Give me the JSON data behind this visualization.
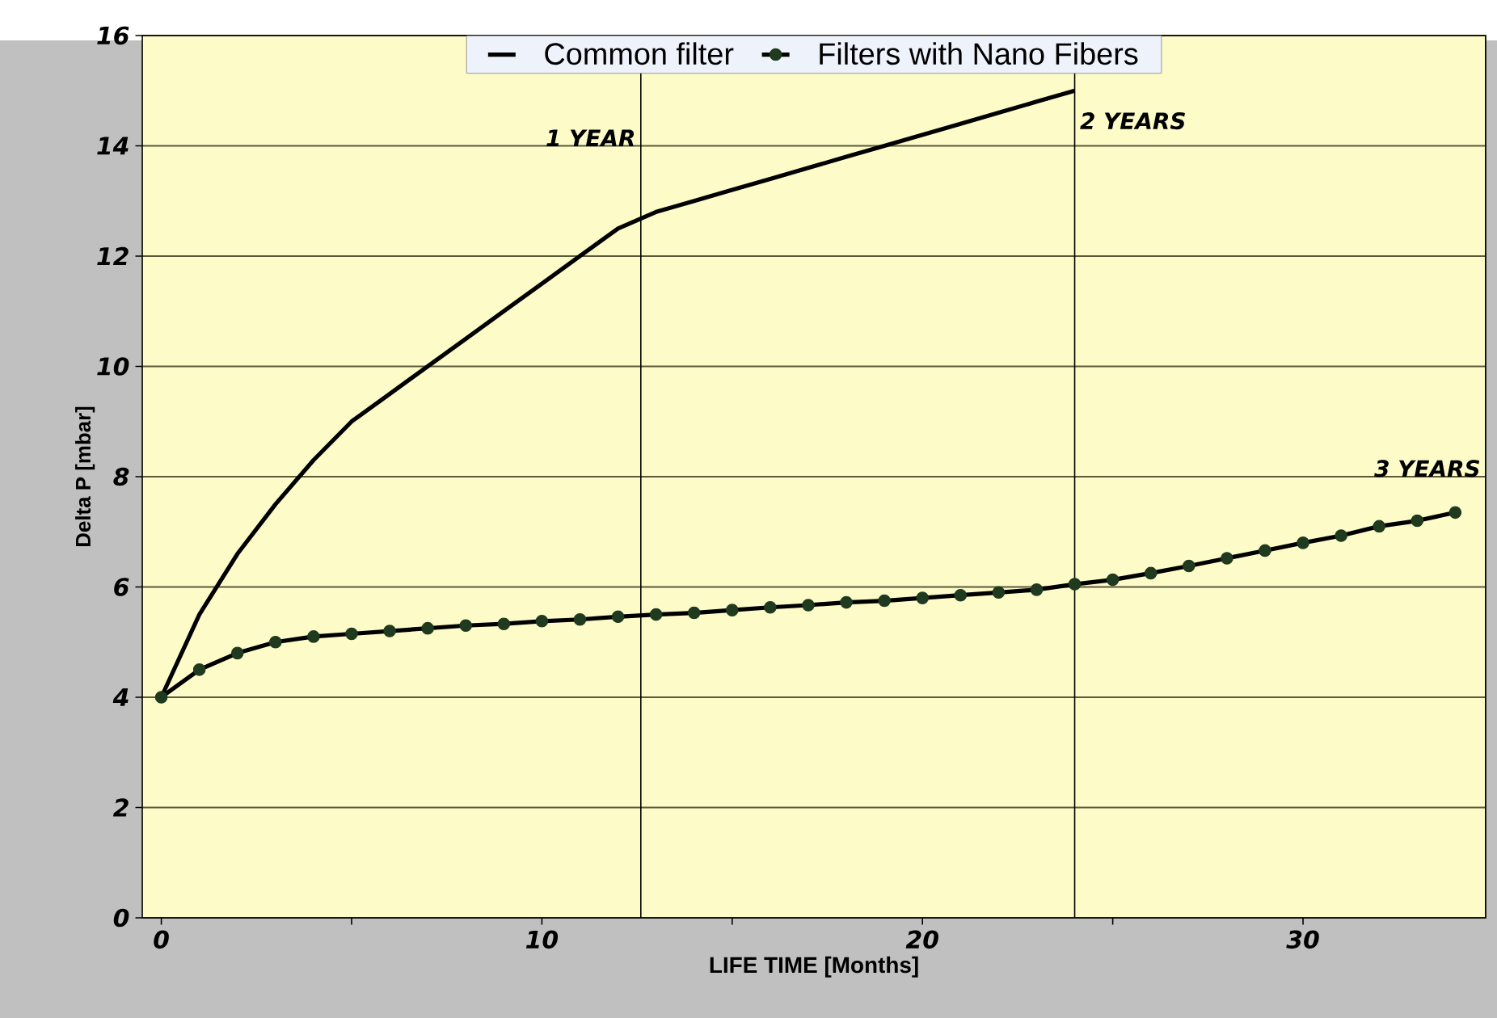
{
  "chart_data": {
    "type": "line",
    "xlabel": "LIFE TIME [Months]",
    "ylabel": "Delta P [mbar]",
    "x": [
      0,
      1,
      2,
      3,
      4,
      5,
      6,
      7,
      8,
      9,
      10,
      11,
      12,
      13,
      14,
      15,
      16,
      17,
      18,
      19,
      20,
      21,
      22,
      23,
      24,
      25,
      26,
      27,
      28,
      29,
      30,
      31,
      32,
      33,
      34
    ],
    "series": [
      {
        "name": "Common filter",
        "color": "#000000",
        "marker": "none",
        "values": [
          4.0,
          5.5,
          6.6,
          7.5,
          8.3,
          9.0,
          9.5,
          10.0,
          10.5,
          11.0,
          11.5,
          12.0,
          12.5,
          12.8,
          13.0,
          13.2,
          13.4,
          13.6,
          13.8,
          14.0,
          14.2,
          14.4,
          14.6,
          14.8,
          15.0,
          null,
          null,
          null,
          null,
          null,
          null,
          null,
          null,
          null,
          null
        ]
      },
      {
        "name": "Filters with Nano Fibers",
        "color": "#1f3a1f",
        "marker": "circle",
        "values": [
          4.0,
          4.5,
          4.8,
          5.0,
          5.1,
          5.15,
          5.2,
          5.25,
          5.3,
          5.33,
          5.38,
          5.41,
          5.46,
          5.5,
          5.53,
          5.58,
          5.63,
          5.67,
          5.72,
          5.75,
          5.8,
          5.85,
          5.9,
          5.95,
          6.05,
          6.13,
          6.25,
          6.38,
          6.52,
          6.66,
          6.8,
          6.93,
          7.1,
          7.2,
          7.35
        ]
      }
    ],
    "xlim": [
      -0.5,
      34.8
    ],
    "ylim": [
      0,
      16
    ],
    "xticks": [
      0,
      {
        "value": 5,
        "label": null
      },
      10,
      {
        "value": 15,
        "label": null
      },
      20,
      {
        "value": 25,
        "label": null
      },
      30
    ],
    "yticks": [
      0,
      2,
      4,
      6,
      8,
      10,
      12,
      14,
      16
    ],
    "grid": "y",
    "legend": "top",
    "ref_lines": [
      {
        "axis": "x",
        "value": 12.6,
        "color": "#000000"
      },
      {
        "axis": "x",
        "value": 24.0,
        "color": "#000000"
      },
      {
        "axis": "x",
        "value": 34.8,
        "color": "#000000"
      }
    ],
    "annotations": [
      {
        "text": "1 YEAR",
        "x": 12.6,
        "y": 13.9
      },
      {
        "text": "2 YEARS",
        "x": 24.0,
        "y": 14.7
      },
      {
        "text": "3 YEARS",
        "x": 34.8,
        "y": 7.9
      }
    ]
  }
}
